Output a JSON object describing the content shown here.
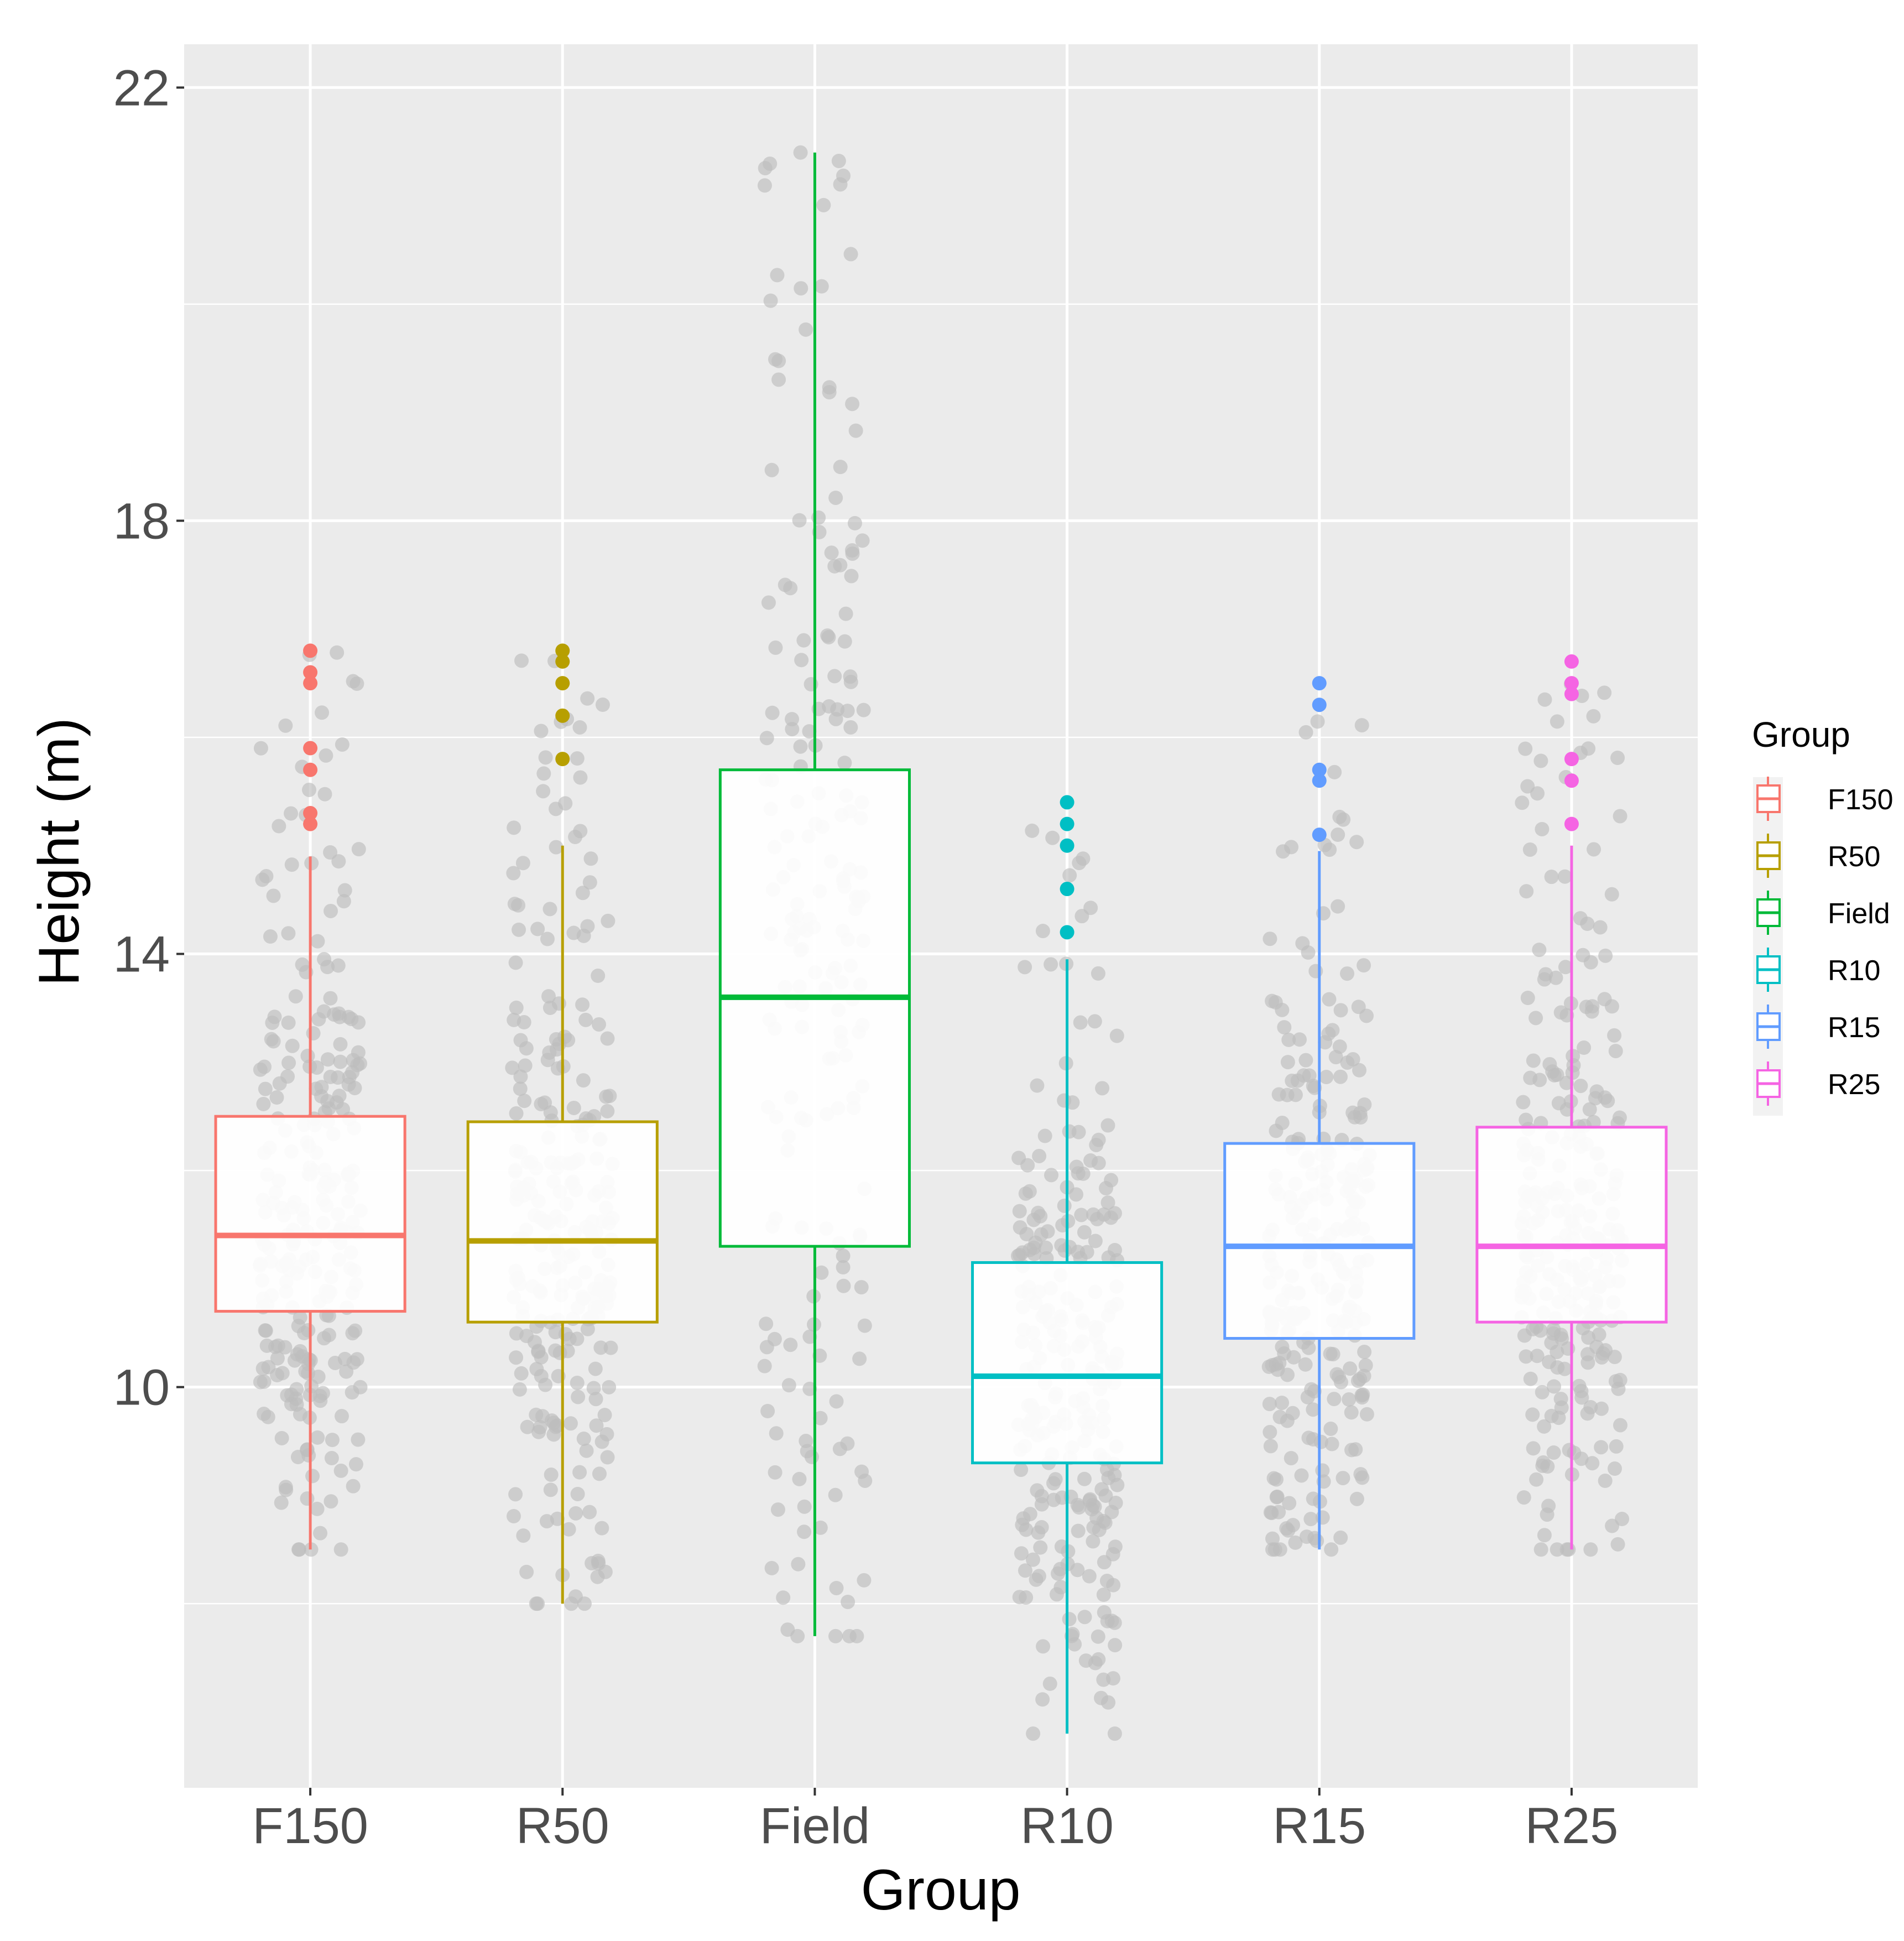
{
  "chart_data": {
    "type": "boxplot",
    "title": "",
    "xlabel": "Group",
    "ylabel": "Height (m)",
    "ylim": [
      6.3,
      22.4
    ],
    "y_ticks": [
      10,
      14,
      18,
      22
    ],
    "y_tick_labels": [
      "10",
      "14",
      "18",
      "22"
    ],
    "y_minor_gridlines": [
      8,
      12,
      16,
      20
    ],
    "grid": true,
    "categories": [
      "F150",
      "R50",
      "Field",
      "R10",
      "R15",
      "R25"
    ],
    "legend": {
      "title": "Group",
      "position": "right",
      "entries": [
        "F150",
        "R50",
        "Field",
        "R10",
        "R15",
        "R25"
      ]
    },
    "colors": {
      "F150": "#F8766D",
      "R50": "#B79F00",
      "Field": "#00BA38",
      "R10": "#00BFC4",
      "R15": "#619CFF",
      "R25": "#F564E3",
      "jitter_points": "#bdbdbd",
      "panel_background": "#ebebeb",
      "grid": "#ffffff"
    },
    "series": [
      {
        "name": "F150",
        "whisker_low": 8.5,
        "q1": 10.7,
        "median": 11.4,
        "q3": 12.5,
        "whisker_high": 14.9,
        "outliers": [
          16.8,
          16.6,
          16.5,
          15.9,
          15.7,
          15.3,
          15.2
        ],
        "jitter_range": [
          8.5,
          16.8
        ],
        "jitter_count": 260
      },
      {
        "name": "R50",
        "whisker_low": 8.0,
        "q1": 10.6,
        "median": 11.35,
        "q3": 12.45,
        "whisker_high": 15.0,
        "outliers": [
          16.8,
          16.7,
          16.5,
          16.2,
          15.8
        ],
        "jitter_range": [
          8.0,
          16.8
        ],
        "jitter_count": 260
      },
      {
        "name": "Field",
        "whisker_low": 7.7,
        "q1": 11.3,
        "median": 13.6,
        "q3": 15.7,
        "whisker_high": 21.4,
        "outliers": [],
        "jitter_range": [
          7.7,
          21.4
        ],
        "jitter_count": 200
      },
      {
        "name": "R10",
        "whisker_low": 6.8,
        "q1": 9.3,
        "median": 10.1,
        "q3": 11.15,
        "whisker_high": 13.95,
        "outliers": [
          15.4,
          15.2,
          15.0,
          14.6,
          14.2
        ],
        "jitter_range": [
          6.8,
          15.4
        ],
        "jitter_count": 260
      },
      {
        "name": "R15",
        "whisker_low": 8.5,
        "q1": 10.45,
        "median": 11.3,
        "q3": 12.25,
        "whisker_high": 14.95,
        "outliers": [
          16.5,
          16.3,
          15.7,
          15.6,
          15.1
        ],
        "jitter_range": [
          8.5,
          16.5
        ],
        "jitter_count": 260
      },
      {
        "name": "R25",
        "whisker_low": 8.5,
        "q1": 10.6,
        "median": 11.3,
        "q3": 12.4,
        "whisker_high": 15.0,
        "outliers": [
          16.7,
          16.5,
          16.4,
          15.8,
          15.6,
          15.2
        ],
        "jitter_range": [
          8.5,
          16.7
        ],
        "jitter_count": 260
      }
    ]
  }
}
